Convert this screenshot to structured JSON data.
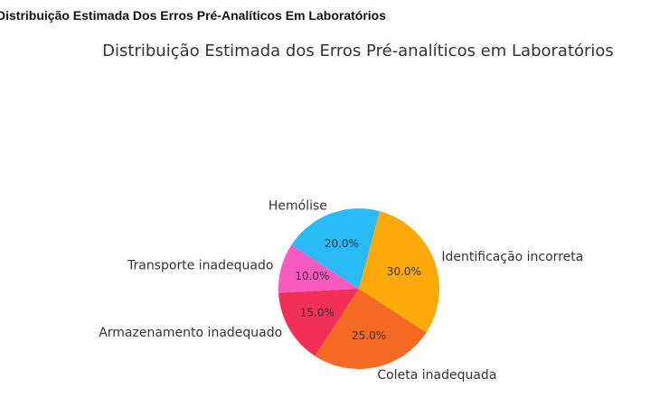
{
  "page": {
    "heading": "Distribuição Estimada Dos Erros Pré-Analíticos Em Laboratórios"
  },
  "chart_data": {
    "type": "pie",
    "title": "Distribuição Estimada dos Erros Pré-analíticos em Laboratórios",
    "labels": [
      "Hemólise",
      "Transporte inadequado",
      "Armazenamento inadequado",
      "Coleta inadequada",
      "Identificação incorreta"
    ],
    "values": [
      20,
      10,
      15,
      25,
      30
    ],
    "value_labels": [
      "20.0%",
      "10.0%",
      "15.0%",
      "25.0%",
      "30.0%"
    ],
    "colors": [
      "#29BBF5",
      "#F95AC0",
      "#F23057",
      "#F46A23",
      "#FDAA08"
    ],
    "legend": "none"
  }
}
